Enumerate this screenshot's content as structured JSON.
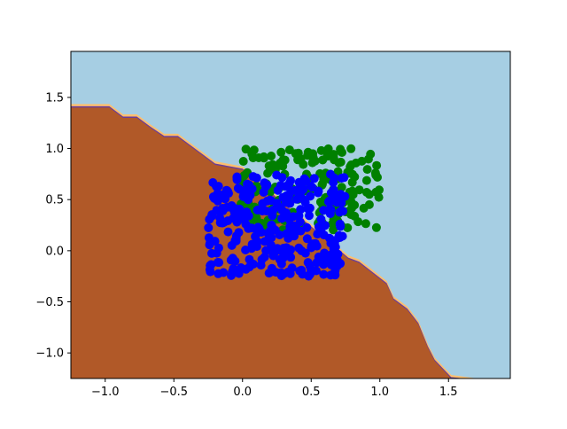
{
  "chart_data": {
    "type": "scatter",
    "title": "",
    "xlabel": "",
    "ylabel": "",
    "xlim": [
      -1.25,
      1.95
    ],
    "ylim": [
      -1.25,
      1.95
    ],
    "grid": false,
    "x_ticks": [
      {
        "value": -1.0,
        "label": "−1.0"
      },
      {
        "value": -0.5,
        "label": "−0.5"
      },
      {
        "value": 0.0,
        "label": "0.0"
      },
      {
        "value": 0.5,
        "label": "0.5"
      },
      {
        "value": 1.0,
        "label": "1.0"
      },
      {
        "value": 1.5,
        "label": "1.5"
      }
    ],
    "y_ticks": [
      {
        "value": -1.0,
        "label": "−1.0"
      },
      {
        "value": -0.5,
        "label": "−0.5"
      },
      {
        "value": 0.0,
        "label": "0.0"
      },
      {
        "value": 0.5,
        "label": "0.5"
      },
      {
        "value": 1.0,
        "label": "1.0"
      },
      {
        "value": 1.5,
        "label": "1.5"
      }
    ],
    "decision_regions": {
      "upper_color": "#a6cee3",
      "lower_color": "#b15928",
      "boundary_band_colors": [
        "#fdbf6f",
        "#6a3d9a"
      ],
      "boundary_points": [
        [
          -1.25,
          1.4
        ],
        [
          -0.97,
          1.4
        ],
        [
          -0.87,
          1.3
        ],
        [
          -0.77,
          1.3
        ],
        [
          -0.67,
          1.2
        ],
        [
          -0.57,
          1.11
        ],
        [
          -0.47,
          1.11
        ],
        [
          -0.37,
          1.01
        ],
        [
          -0.2,
          0.84
        ],
        [
          0.0,
          0.79
        ],
        [
          0.77,
          -0.08
        ],
        [
          0.85,
          -0.12
        ],
        [
          1.05,
          -0.33
        ],
        [
          1.1,
          -0.48
        ],
        [
          1.2,
          -0.58
        ],
        [
          1.28,
          -0.72
        ],
        [
          1.35,
          -0.95
        ],
        [
          1.4,
          -1.08
        ],
        [
          1.52,
          -1.25
        ]
      ]
    },
    "series": [
      {
        "color": "#008000",
        "x_range": [
          -0.02,
          1.0
        ],
        "y_range": [
          0.2,
          1.0
        ],
        "count": 200
      },
      {
        "color": "#0000ff",
        "x_range": [
          -0.25,
          0.75
        ],
        "y_range": [
          -0.25,
          0.75
        ],
        "count": 300
      }
    ]
  }
}
